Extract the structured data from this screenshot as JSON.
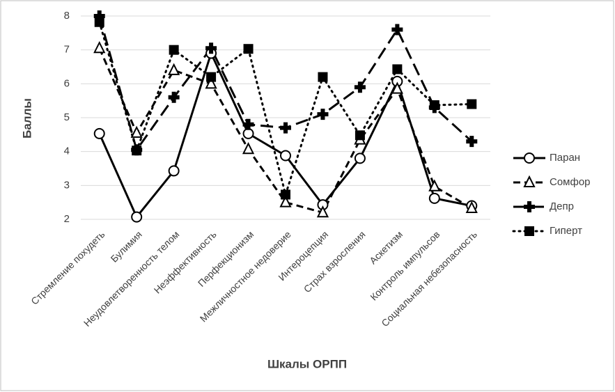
{
  "chart_data": {
    "type": "line",
    "x_label": "Шкалы ОРПП",
    "y_label": "Баллы",
    "categories": [
      "Стремление похудеть",
      "Булимия",
      "Неудовлетворенность телом",
      "Неэффективность",
      "Перфекционизм",
      "Межличностное недоверие",
      "Интероцепция",
      "Страх взросления",
      "Аскетизм",
      "Контроль импульсов",
      "Социальная небезопасность"
    ],
    "series": [
      {
        "name": "Паран",
        "color": "#000000",
        "dash": "solid",
        "marker": "circle",
        "values": [
          4.53,
          2.07,
          3.43,
          6.9,
          4.53,
          3.88,
          2.43,
          3.8,
          6.07,
          2.62,
          2.4
        ]
      },
      {
        "name": "Сомфор",
        "color": "#000000",
        "dash": "dashed",
        "marker": "triangle",
        "values": [
          7.05,
          4.55,
          6.4,
          6.0,
          4.07,
          2.5,
          2.2,
          4.35,
          5.85,
          2.97,
          2.33
        ]
      },
      {
        "name": "Депр",
        "color": "#000000",
        "dash": "long-dashed",
        "marker": "plus",
        "values": [
          8.0,
          4.05,
          5.6,
          7.05,
          4.8,
          4.7,
          5.1,
          5.9,
          7.6,
          5.3,
          4.3
        ]
      },
      {
        "name": "Гиперт",
        "color": "#000000",
        "dash": "dotted",
        "marker": "square",
        "values": [
          7.82,
          4.03,
          7.0,
          6.2,
          7.03,
          2.73,
          6.2,
          4.48,
          6.43,
          5.37,
          5.4
        ]
      }
    ],
    "ylim": [
      2,
      8
    ],
    "yticks": [
      2,
      3,
      4,
      5,
      6,
      7,
      8
    ],
    "grid": true,
    "legend": "right"
  }
}
